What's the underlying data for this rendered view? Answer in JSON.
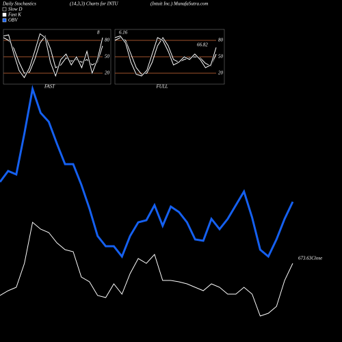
{
  "header": {
    "left": "Daily Stochastics",
    "center": "(14,3,3) Charts for INTU",
    "right": "(Intuit Inc.) MunafaSutra.com"
  },
  "chart_data": [
    {
      "type": "line",
      "title": "FAST",
      "annotation": "8",
      "ylim": [
        0,
        100
      ],
      "yticks": [
        80,
        50,
        20
      ],
      "grid": true,
      "grid_color": "#a0522d",
      "series": [
        {
          "name": "Slow D",
          "color": "#ffffff",
          "values": [
            85,
            80,
            65,
            40,
            20,
            22,
            45,
            75,
            88,
            65,
            30,
            35,
            48,
            42,
            45,
            40,
            45,
            35,
            40,
            70
          ]
        },
        {
          "name": "Fast K",
          "color": "#ffffff",
          "values": [
            88,
            90,
            55,
            25,
            12,
            30,
            60,
            92,
            85,
            40,
            15,
            45,
            55,
            35,
            50,
            30,
            60,
            20,
            45,
            85
          ]
        }
      ]
    },
    {
      "type": "line",
      "title": "FULL",
      "annotations": [
        "6.16",
        "66.82"
      ],
      "ylim": [
        0,
        100
      ],
      "yticks": [
        80,
        50,
        20
      ],
      "grid": true,
      "grid_color": "#a0522d",
      "series": [
        {
          "name": "Slow D",
          "color": "#ffffff",
          "values": [
            80,
            85,
            80,
            55,
            30,
            18,
            20,
            40,
            70,
            85,
            70,
            45,
            40,
            45,
            48,
            50,
            48,
            38,
            33,
            55
          ]
        },
        {
          "name": "Fast K",
          "color": "#ffffff",
          "values": [
            85,
            88,
            75,
            40,
            18,
            15,
            25,
            55,
            85,
            80,
            60,
            35,
            40,
            50,
            45,
            55,
            45,
            30,
            35,
            67
          ]
        }
      ]
    },
    {
      "type": "line",
      "annotation": "673.63Close",
      "ylim": [
        0,
        125
      ],
      "series": [
        {
          "name": "OBV",
          "color": "#1560f0",
          "values": [
            58.5,
            62.5,
            61.25,
            76.25,
            92.5,
            83.75,
            80.5,
            72.5,
            65,
            65,
            57.5,
            48.75,
            38.75,
            35,
            35,
            31.25,
            38.75,
            43.75,
            44.5,
            50,
            42.5,
            49.5,
            47.5,
            43.75,
            37.5,
            37,
            45,
            41.25,
            45,
            50,
            55,
            45.5,
            33.75,
            31.25,
            37.5,
            45,
            51.25
          ]
        },
        {
          "color": "#ffffff",
          "values": [
            17,
            18.75,
            20,
            28.75,
            43.75,
            41.25,
            40,
            36.25,
            33.75,
            33,
            23.75,
            22,
            17,
            16.25,
            21.25,
            17.5,
            25,
            30.5,
            28.75,
            32,
            22.5,
            22.5,
            22,
            21.25,
            20,
            18.75,
            21.25,
            20,
            17.5,
            17.5,
            20,
            17.5,
            9.5,
            10.5,
            13,
            22.5,
            28.75
          ]
        }
      ]
    }
  ]
}
